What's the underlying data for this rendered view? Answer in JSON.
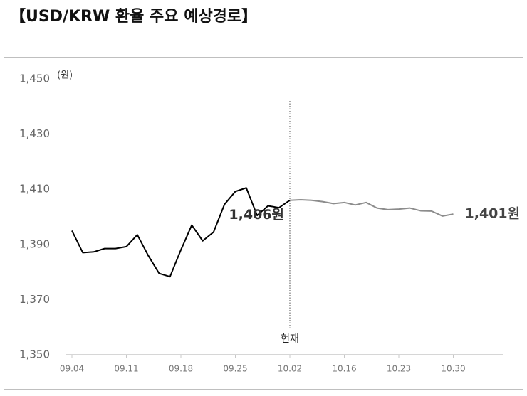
{
  "chart_data": {
    "type": "line",
    "title": "【USD/KRW 환율 주요 예상경로】",
    "y_unit": "(원)",
    "categories": [
      "09.04",
      null,
      null,
      null,
      null,
      "09.11",
      null,
      null,
      null,
      null,
      "09.18",
      null,
      null,
      null,
      null,
      "09.25",
      null,
      null,
      null,
      null,
      "10.02",
      null,
      null,
      null,
      null,
      "10.16",
      null,
      null,
      null,
      null,
      "10.23",
      null,
      null,
      null,
      null,
      "10.30"
    ],
    "series": [
      {
        "color": "#000000",
        "end_label": "1,406원",
        "values": [
          1395,
          1387,
          1387.3,
          1388.5,
          1388.5,
          1389.2,
          1393.5,
          1386,
          1379.5,
          1378.3,
          1388,
          1397,
          1391.3,
          1394.5,
          1404.5,
          1409.2,
          1410.5,
          1400.5,
          1404,
          1403.3,
          1406,
          null,
          null,
          null,
          null,
          null,
          null,
          null,
          null,
          null,
          null,
          null,
          null,
          null,
          null,
          null
        ]
      },
      {
        "color": "#8c8c8c",
        "end_label": "1,401원",
        "values": [
          null,
          null,
          null,
          null,
          null,
          null,
          null,
          null,
          null,
          null,
          null,
          null,
          null,
          null,
          null,
          null,
          null,
          null,
          null,
          null,
          1406,
          1406.2,
          1406,
          1405.5,
          1404.8,
          1405.2,
          1404.3,
          1405.2,
          1403.2,
          1402.6,
          1402.8,
          1403.2,
          1402.2,
          1402.1,
          1400.3,
          1401
        ]
      }
    ],
    "marker_category": "10.02",
    "marker_label": "현재",
    "ylim": [
      1350,
      1450
    ],
    "yticks": [
      {
        "value": 1350,
        "label": "1,350"
      },
      {
        "value": 1370,
        "label": "1,370"
      },
      {
        "value": 1390,
        "label": "1,390"
      },
      {
        "value": 1410,
        "label": "1,410"
      },
      {
        "value": 1430,
        "label": "1,430"
      },
      {
        "value": 1450,
        "label": "1,450"
      }
    ],
    "grid": false
  }
}
